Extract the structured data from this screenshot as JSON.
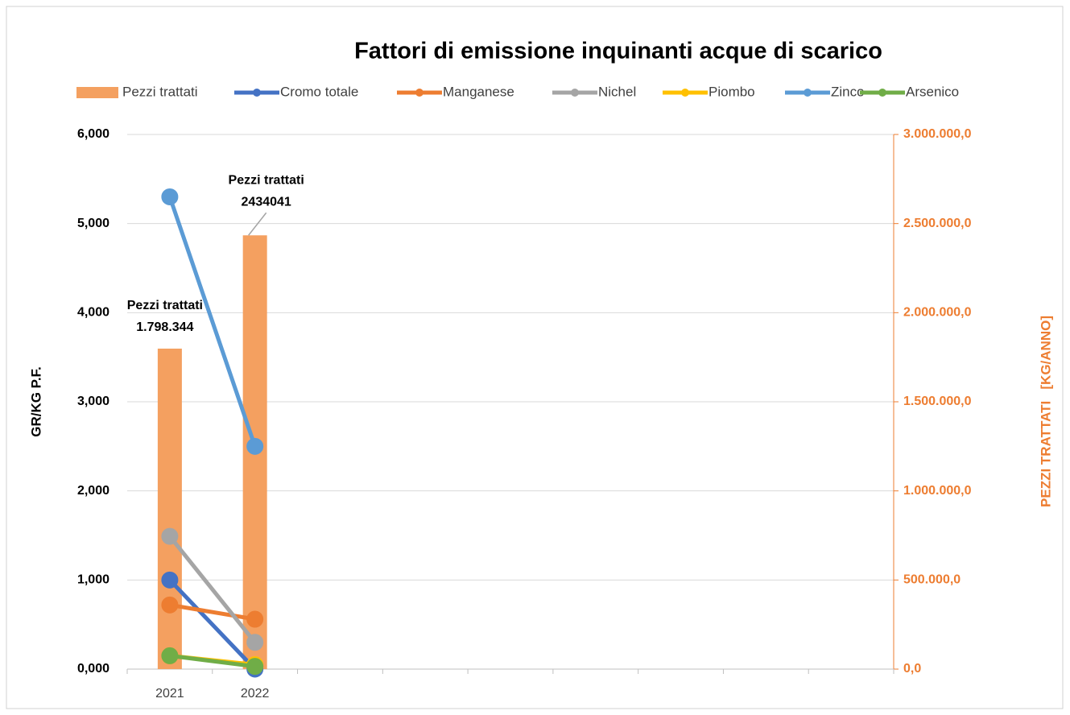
{
  "chart_data": {
    "type": "combo",
    "title": "Fattori di emissione inquinanti acque di scarico",
    "ylabel": "GR/KG P.F.",
    "y2label": "PEZZI TRATTATI   [KG/ANNO]",
    "categories": [
      "2021",
      "2022",
      null,
      null,
      null,
      null,
      null,
      null,
      null
    ],
    "ylim": [
      0,
      6
    ],
    "yticks": [
      {
        "value": 0,
        "label": "0,000"
      },
      {
        "value": 1,
        "label": "1,000"
      },
      {
        "value": 2,
        "label": "2,000"
      },
      {
        "value": 3,
        "label": "3,000"
      },
      {
        "value": 4,
        "label": "4,000"
      },
      {
        "value": 5,
        "label": "5,000"
      },
      {
        "value": 6,
        "label": "6,000"
      }
    ],
    "y2lim": [
      0,
      3000000
    ],
    "y2ticks": [
      {
        "value": 0,
        "label": "0,0"
      },
      {
        "value": 500000,
        "label": "500.000,0"
      },
      {
        "value": 1000000,
        "label": "1.000.000,0"
      },
      {
        "value": 1500000,
        "label": "1.500.000,0"
      },
      {
        "value": 2000000,
        "label": "2.000.000,0"
      },
      {
        "value": 2500000,
        "label": "2.500.000,0"
      },
      {
        "value": 3000000,
        "label": "3.000.000,0"
      }
    ],
    "grid": true,
    "legend": "top",
    "series": [
      {
        "name": "Pezzi trattati",
        "type": "bar",
        "axis": "y2",
        "color": "#f4a060",
        "values": [
          1798344,
          2434041,
          null,
          null,
          null,
          null,
          null,
          null,
          null
        ],
        "value_labels": [
          "1.798.344",
          "2434041",
          null,
          null,
          null,
          null,
          null,
          null,
          null
        ]
      },
      {
        "name": "Cromo totale",
        "type": "line",
        "color": "#4472c4",
        "values": [
          1.0,
          0.0,
          null,
          null,
          null,
          null,
          null,
          null,
          null
        ]
      },
      {
        "name": "Manganese",
        "type": "line",
        "color": "#ed7d31",
        "values": [
          0.72,
          0.56,
          null,
          null,
          null,
          null,
          null,
          null,
          null
        ]
      },
      {
        "name": "Nichel",
        "type": "line",
        "color": "#a5a5a5",
        "values": [
          1.49,
          0.3,
          null,
          null,
          null,
          null,
          null,
          null,
          null
        ]
      },
      {
        "name": "Piombo",
        "type": "line",
        "color": "#ffc000",
        "values": [
          0.15,
          0.05,
          null,
          null,
          null,
          null,
          null,
          null,
          null
        ]
      },
      {
        "name": "Zinco",
        "type": "line",
        "color": "#5b9bd5",
        "values": [
          5.3,
          2.5,
          null,
          null,
          null,
          null,
          null,
          null,
          null
        ]
      },
      {
        "name": "Arsenico",
        "type": "line",
        "color": "#70ad47",
        "values": [
          0.15,
          0.03,
          null,
          null,
          null,
          null,
          null,
          null,
          null
        ]
      }
    ]
  }
}
